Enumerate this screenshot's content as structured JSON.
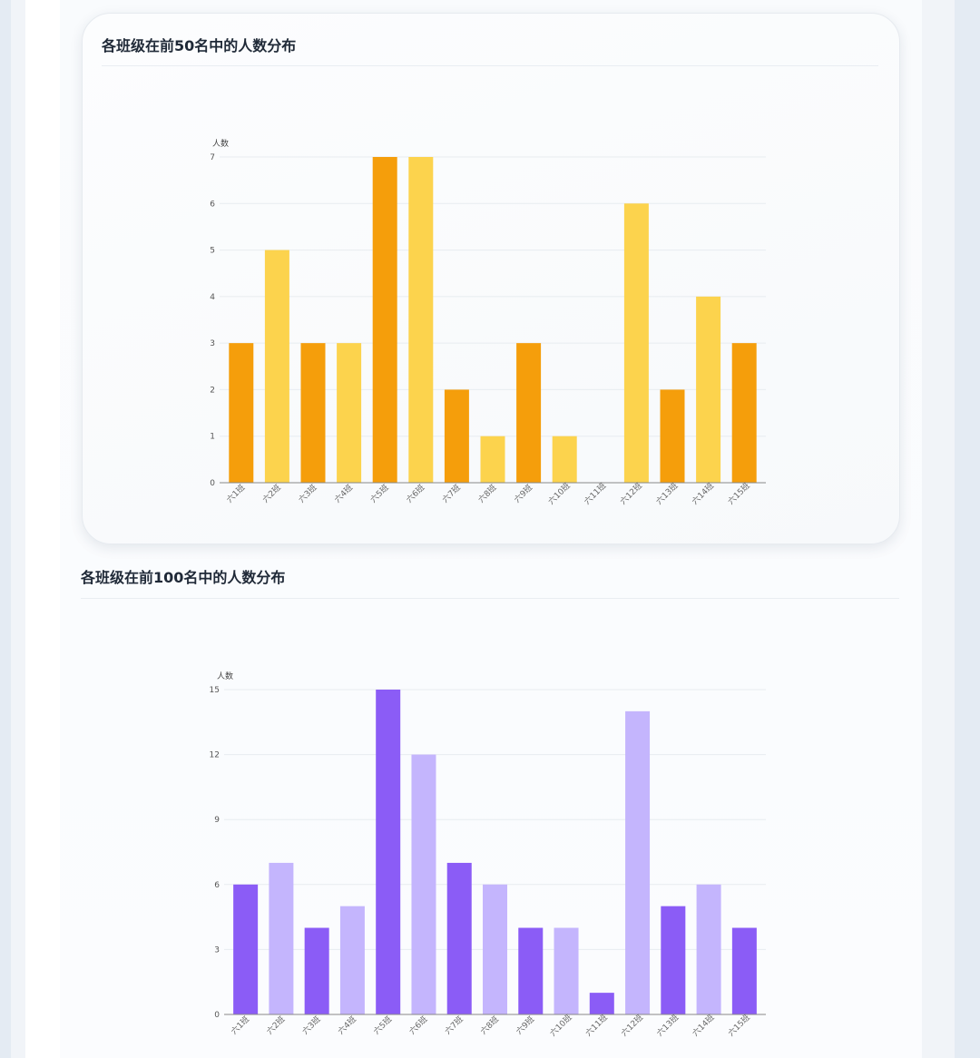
{
  "charts": [
    {
      "title": "各班级在前50名中的人数分布",
      "colors": [
        "#f59e0b",
        "#fcd34d"
      ]
    },
    {
      "title": "各班级在前100名中的人数分布",
      "colors": [
        "#8b5cf6",
        "#c4b5fd"
      ]
    }
  ],
  "chart_data": [
    {
      "type": "bar",
      "title": "各班级在前50名中的人数分布",
      "ylabel": "人数",
      "categories": [
        "六1班",
        "六2班",
        "六3班",
        "六4班",
        "六5班",
        "六6班",
        "六7班",
        "六8班",
        "六9班",
        "六10班",
        "六11班",
        "六12班",
        "六13班",
        "六14班",
        "六15班"
      ],
      "values": [
        3,
        5,
        3,
        3,
        7,
        7,
        2,
        1,
        3,
        1,
        0,
        6,
        2,
        4,
        3
      ],
      "yticks": [
        0,
        1,
        2,
        3,
        4,
        5,
        6,
        7
      ],
      "ylim": [
        0,
        7
      ],
      "grid": true
    },
    {
      "type": "bar",
      "title": "各班级在前100名中的人数分布",
      "ylabel": "人数",
      "categories": [
        "六1班",
        "六2班",
        "六3班",
        "六4班",
        "六5班",
        "六6班",
        "六7班",
        "六8班",
        "六9班",
        "六10班",
        "六11班",
        "六12班",
        "六13班",
        "六14班",
        "六15班"
      ],
      "values": [
        6,
        7,
        4,
        5,
        15,
        12,
        7,
        6,
        4,
        4,
        1,
        14,
        5,
        6,
        4
      ],
      "yticks": [
        0,
        3,
        6,
        9,
        12,
        15
      ],
      "ylim": [
        0,
        15
      ],
      "grid": true
    }
  ]
}
